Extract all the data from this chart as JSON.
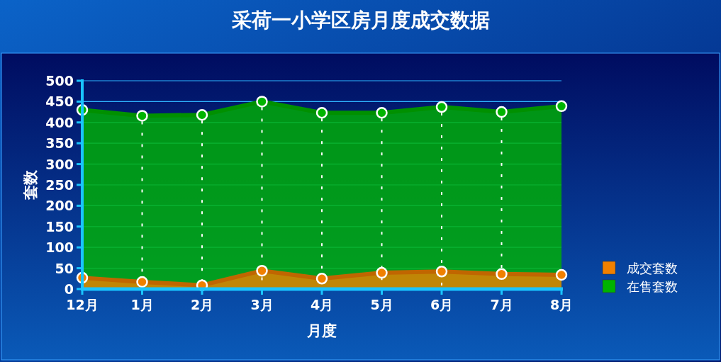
{
  "chart_data": {
    "type": "area",
    "title": "采荷一小学区房月度成交数据",
    "xlabel": "月度",
    "ylabel": "套数",
    "categories": [
      "12月",
      "1月",
      "2月",
      "3月",
      "4月",
      "5月",
      "6月",
      "7月",
      "8月"
    ],
    "series": [
      {
        "name": "在售套数",
        "color": "#00b400",
        "values": [
          430,
          416,
          418,
          450,
          423,
          423,
          437,
          425,
          439
        ]
      },
      {
        "name": "成交套数",
        "color": "#f08000",
        "values": [
          27,
          17,
          9,
          44,
          25,
          39,
          42,
          36,
          34
        ]
      }
    ],
    "ylim": [
      0,
      500
    ],
    "yticks": [
      0,
      50,
      100,
      150,
      200,
      250,
      300,
      350,
      400,
      450,
      500
    ],
    "grid": true,
    "legend": "right",
    "marker": "circle"
  }
}
